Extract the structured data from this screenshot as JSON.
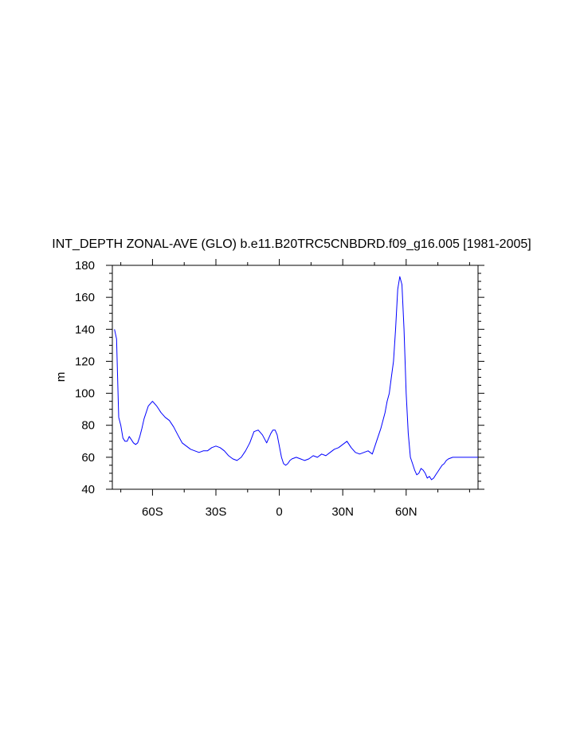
{
  "chart_data": {
    "type": "line",
    "title": "INT_DEPTH ZONAL-AVE (GLO) b.e11.B20TRC5CNBDRD.f09_g16.005 [1981-2005]",
    "xlabel": "",
    "ylabel": "m",
    "xlim": [
      -79,
      94
    ],
    "ylim": [
      40,
      180
    ],
    "grid": false,
    "x_ticks": [
      {
        "value": -60,
        "label": "60S"
      },
      {
        "value": -30,
        "label": "30S"
      },
      {
        "value": 0,
        "label": "0"
      },
      {
        "value": 30,
        "label": "30N"
      },
      {
        "value": 60,
        "label": "60N"
      }
    ],
    "y_ticks": [
      40,
      60,
      80,
      100,
      120,
      140,
      160,
      180
    ],
    "series": [
      {
        "color": "#0000ff",
        "x": [
          -78,
          -77,
          -76.5,
          -76,
          -75,
          -74,
          -73,
          -72,
          -71,
          -70,
          -69,
          -68,
          -67,
          -66,
          -65,
          -64,
          -62,
          -60,
          -58,
          -57,
          -56,
          -54,
          -52,
          -50,
          -48,
          -46,
          -44,
          -42,
          -40,
          -38,
          -36,
          -34,
          -32,
          -30,
          -28,
          -26,
          -24,
          -22,
          -20,
          -18,
          -16,
          -14,
          -12,
          -10,
          -8,
          -6,
          -4,
          -3,
          -2,
          -1,
          0,
          1,
          2,
          3,
          4,
          5,
          6,
          8,
          10,
          12,
          14,
          16,
          18,
          20,
          22,
          24,
          26,
          28,
          30,
          32,
          34,
          36,
          38,
          40,
          42,
          44,
          46,
          48,
          50,
          51,
          52,
          53,
          54,
          55,
          56,
          57,
          58,
          59,
          60,
          61,
          62,
          63,
          64,
          65,
          66,
          67,
          68,
          69,
          70,
          71,
          72,
          73,
          74,
          75,
          76,
          77,
          78,
          79,
          80,
          82,
          84,
          86,
          88,
          90,
          92,
          94
        ],
        "y": [
          140,
          134,
          110,
          85,
          80,
          72,
          70,
          70,
          73,
          71,
          69,
          68,
          69,
          73,
          78,
          84,
          92,
          95,
          92,
          90,
          88,
          85,
          83,
          79,
          74,
          69,
          67,
          65,
          64,
          63,
          64,
          64,
          66,
          67,
          66,
          64,
          61,
          59,
          58,
          60,
          64,
          69,
          76,
          77,
          74,
          69,
          75,
          77,
          77,
          74,
          67,
          60,
          56,
          55,
          56,
          58,
          59,
          60,
          59,
          58,
          59,
          61,
          60,
          62,
          61,
          63,
          65,
          66,
          68,
          70,
          66,
          63,
          62,
          63,
          64,
          62,
          70,
          78,
          88,
          95,
          100,
          110,
          120,
          140,
          165,
          173,
          168,
          140,
          100,
          75,
          60,
          56,
          52,
          49,
          50,
          53,
          52,
          50,
          47,
          48,
          46,
          47,
          49,
          51,
          53,
          55,
          56,
          58,
          59,
          60,
          60,
          60,
          60,
          60,
          60,
          60
        ]
      }
    ]
  }
}
